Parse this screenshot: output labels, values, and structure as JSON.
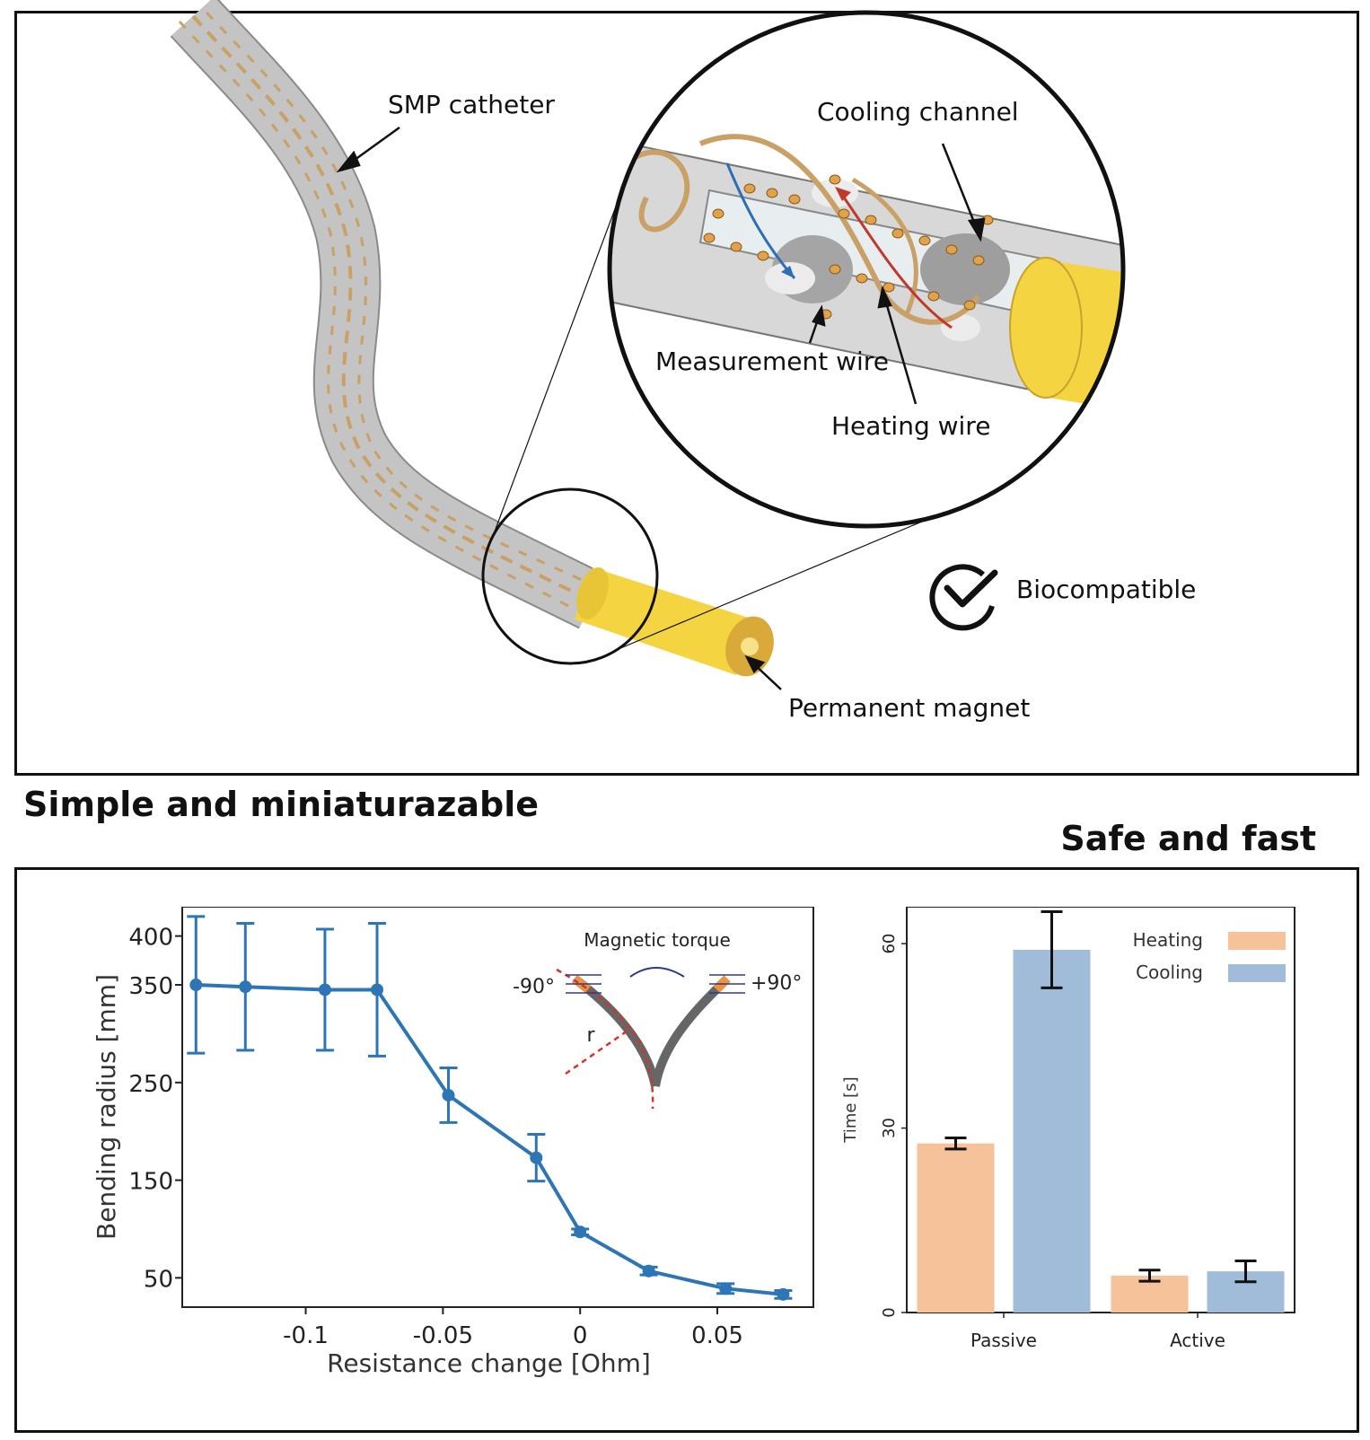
{
  "figure": {
    "top_panel": {
      "labels": {
        "smp_catheter": "SMP catheter",
        "cooling_channel": "Cooling channel",
        "measurement_wire": "Measurement wire",
        "heating_wire": "Heating wire",
        "biocompatible": "Biocompatible",
        "permanent_magnet": "Permanent magnet"
      },
      "colors": {
        "catheter_body": "#b9b9b9",
        "helix_wire": "#c9a066",
        "magnet": "#f5d442",
        "magnet_core": "#d9a93a",
        "blue_arrow": "#2f6db5",
        "red_arrow": "#c0392b",
        "wire_dots": "#e0a24a"
      },
      "icons": [
        "checkmark-circle-icon"
      ]
    },
    "headings": {
      "left": "Simple and miniaturazable",
      "right": "Safe and fast"
    }
  },
  "chart_data": [
    {
      "type": "line",
      "xlabel": "Resistance change [Ohm]",
      "ylabel": "Bending radius [mm]",
      "x_ticks": [
        "-0.1",
        "-0.05",
        "0",
        "0.05"
      ],
      "y_ticks": [
        "50",
        "150",
        "250",
        "350",
        "400"
      ],
      "xlim": [
        -0.145,
        0.085
      ],
      "ylim": [
        20,
        430
      ],
      "series": [
        {
          "color": "#2e75b6",
          "x": [
            -0.14,
            -0.122,
            -0.093,
            -0.074,
            -0.048,
            -0.016,
            0.0,
            0.025,
            0.053,
            0.074
          ],
          "y": [
            350,
            348,
            345,
            345,
            237,
            173,
            97,
            57,
            39,
            33
          ],
          "err": [
            70,
            65,
            62,
            68,
            28,
            24,
            3,
            4,
            5,
            4
          ]
        }
      ],
      "inset": {
        "title": "Magnetic torque",
        "left_label": "-90°",
        "right_label": "+90°",
        "radius_label": "r"
      }
    },
    {
      "type": "bar",
      "categories": [
        "Passive",
        "Active"
      ],
      "ylabel": "Time [s]",
      "y_ticks": [
        "0",
        "30",
        "60"
      ],
      "ylim": [
        0,
        66
      ],
      "legend_position": "top-right",
      "series": [
        {
          "name": "Heating",
          "color": "#f5c29a",
          "values": [
            27.5,
            6
          ],
          "err": [
            0.9,
            0.9
          ]
        },
        {
          "name": "Cooling",
          "color": "#a0bcd8",
          "values": [
            59,
            6.7
          ],
          "err": [
            6.2,
            1.7
          ]
        }
      ]
    }
  ]
}
